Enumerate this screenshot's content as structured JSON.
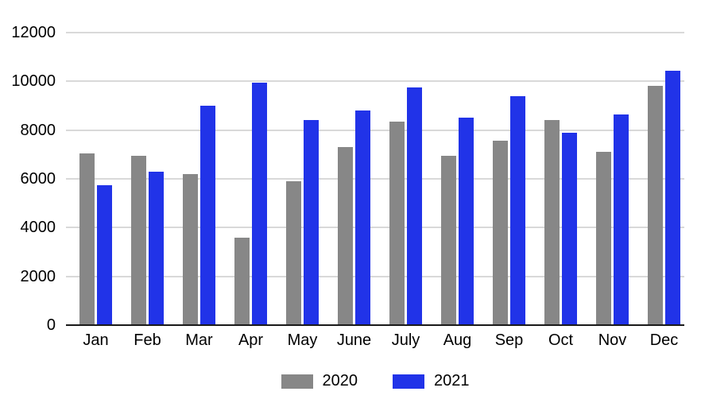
{
  "chart_data": {
    "type": "bar",
    "title": "",
    "xlabel": "",
    "ylabel": "",
    "categories": [
      "Jan",
      "Feb",
      "Mar",
      "Apr",
      "May",
      "June",
      "July",
      "Aug",
      "Sep",
      "Oct",
      "Nov",
      "Dec"
    ],
    "series": [
      {
        "name": "2020",
        "color": "#878787",
        "values": [
          7050,
          6950,
          6200,
          3600,
          5900,
          7300,
          8350,
          6950,
          7550,
          8400,
          7100,
          9800
        ]
      },
      {
        "name": "2021",
        "color": "#2133e8",
        "values": [
          5750,
          6300,
          9000,
          9950,
          8400,
          8800,
          9750,
          8500,
          9400,
          7900,
          8650,
          10450
        ]
      }
    ],
    "ylim": [
      0,
      12000
    ],
    "yticks": [
      0,
      2000,
      4000,
      6000,
      8000,
      10000,
      12000
    ],
    "grid": "horizontal",
    "legend_position": "bottom-center"
  },
  "style": {
    "background_color": "#ffffff",
    "gridline_color": "#d9d9d9",
    "axis_line_color": "#1a1a1a",
    "text_color": "#000000"
  }
}
